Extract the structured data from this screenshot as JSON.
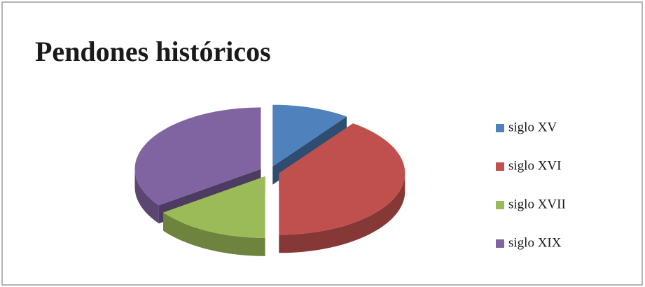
{
  "chart_data": {
    "type": "pie",
    "title": "Pendones históricos",
    "categories": [
      "siglo XV",
      "siglo XVI",
      "siglo XVII",
      "siglo XIX"
    ],
    "values": [
      10,
      40,
      15,
      35
    ],
    "colors": [
      "#4f81bd",
      "#c0504d",
      "#9bbb59",
      "#8064a2"
    ],
    "legend": "right"
  }
}
